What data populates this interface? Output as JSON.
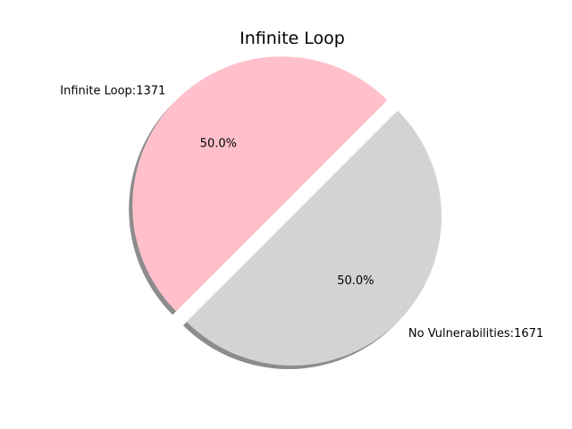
{
  "chart_data": {
    "type": "pie",
    "title": "Infinite Loop",
    "slices": [
      {
        "label": "Infinite Loop:1371",
        "value": 50.0,
        "pct_label": "50.0%",
        "color": "#ffc0cb",
        "exploded": true
      },
      {
        "label": "No Vulnerabilities:1671",
        "value": 50.0,
        "pct_label": "50.0%",
        "color": "#d3d3d3",
        "exploded": false
      }
    ],
    "start_angle_deg": 45,
    "shadow": true,
    "legend": "none"
  }
}
